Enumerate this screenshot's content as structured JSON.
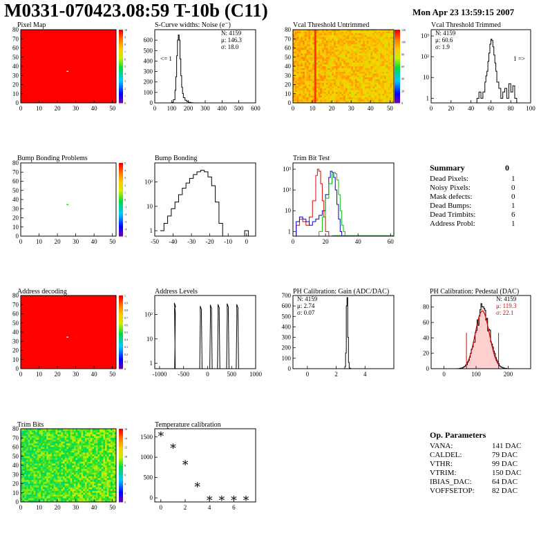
{
  "header": {
    "title": "M0331-070423.08:59 T-10b (C11)",
    "date": "Mon Apr 23 13:59:15 2007"
  },
  "colors": {
    "red_map": "#ff0000",
    "trimbit_red": "#e00000",
    "trimbit_blue": "#0000d0",
    "trimbit_green": "#00c000",
    "pedestal_fit": "#e00000"
  },
  "chart_data": [
    {
      "id": "pixel-map",
      "type": "heatmap",
      "title": "Pixel Map",
      "xlim": [
        0,
        52
      ],
      "ylim": [
        0,
        80
      ],
      "xticks": [
        "0",
        "10",
        "20",
        "30",
        "40",
        "50"
      ],
      "yticks": [
        "0",
        "10",
        "20",
        "30",
        "40",
        "50",
        "60",
        "70",
        "80"
      ],
      "zticks": [
        "0",
        "1",
        "2",
        "3",
        "4",
        "5",
        "6",
        "7",
        "8",
        "9",
        "10"
      ],
      "fill": "uniform_max",
      "dead_pixels": [
        {
          "col": 25,
          "row": 34
        }
      ]
    },
    {
      "id": "s-curve",
      "type": "histogram",
      "title": "S-Curve widths: Noise (e⁻)",
      "xlim": [
        0,
        600
      ],
      "ylim": [
        0,
        700
      ],
      "xticks": [
        "0",
        "100",
        "200",
        "300",
        "400",
        "500",
        "600"
      ],
      "yticks": [
        "0",
        "100",
        "200",
        "300",
        "400",
        "500",
        "600"
      ],
      "stats": [
        "N: 4159",
        "μ: 146.3",
        "σ: 18.0"
      ],
      "annotations": [
        "<= 1"
      ],
      "bins_x": [
        90,
        100,
        110,
        120,
        125,
        130,
        135,
        140,
        145,
        150,
        155,
        160,
        165,
        170,
        180,
        190,
        200,
        215,
        230,
        250
      ],
      "bins_y": [
        0,
        5,
        30,
        120,
        250,
        450,
        600,
        650,
        600,
        420,
        260,
        150,
        90,
        50,
        25,
        12,
        5,
        2,
        0,
        0
      ]
    },
    {
      "id": "vcal-untrimmed",
      "type": "heatmap",
      "title": "Vcal Threshold Untrimmed",
      "xlim": [
        0,
        52
      ],
      "ylim": [
        0,
        80
      ],
      "xticks": [
        "0",
        "10",
        "20",
        "30",
        "40",
        "50"
      ],
      "yticks": [
        "0",
        "10",
        "20",
        "30",
        "40",
        "50",
        "60",
        "70",
        "80"
      ],
      "zticks": [
        "0",
        "20",
        "40",
        "60",
        "80",
        "100",
        "120"
      ]
    },
    {
      "id": "vcal-trimmed",
      "type": "histogram",
      "title": "Vcal Threshold Trimmed",
      "log_y": true,
      "xlim": [
        0,
        100
      ],
      "ylim": [
        0.6,
        2000
      ],
      "xticks": [
        "0",
        "20",
        "40",
        "60",
        "80",
        "100"
      ],
      "yticks": [
        "1",
        "10",
        "10²",
        "10³"
      ],
      "stats": [
        "N: 4159",
        "μ: 60.6",
        "σ: 1.9"
      ],
      "annotations": [
        "1 =>"
      ],
      "bins_x": [
        44,
        46,
        48,
        50,
        52,
        54,
        55,
        56,
        57,
        58,
        59,
        60,
        61,
        62,
        63,
        64,
        65,
        66,
        68,
        70,
        72,
        74,
        76,
        78,
        80,
        82,
        84,
        86
      ],
      "bins_y": [
        0,
        1,
        2,
        1,
        2,
        6,
        12,
        20,
        60,
        150,
        400,
        700,
        600,
        300,
        120,
        50,
        20,
        6,
        3,
        1,
        2,
        3,
        1,
        5,
        2,
        4,
        1,
        0
      ]
    },
    {
      "id": "bump-problems",
      "type": "heatmap",
      "title": "Bump Bonding Problems",
      "xlim": [
        0,
        52
      ],
      "ylim": [
        0,
        80
      ],
      "xticks": [
        "0",
        "10",
        "20",
        "30",
        "40",
        "50"
      ],
      "yticks": [
        "0",
        "10",
        "20",
        "30",
        "40",
        "50",
        "60",
        "70",
        "80"
      ],
      "zticks": [
        "-5",
        "-4",
        "-3",
        "-2",
        "-1",
        "0",
        "1",
        "2",
        "3",
        "4",
        "5"
      ],
      "fill": "empty",
      "dead_bumps": [
        {
          "col": 25,
          "row": 34
        }
      ]
    },
    {
      "id": "bump-bonding",
      "type": "histogram",
      "title": "Bump Bonding",
      "log_y": true,
      "xlim": [
        -50,
        5
      ],
      "ylim": [
        0.6,
        600
      ],
      "xticks": [
        "-50",
        "-40",
        "-30",
        "-20",
        "-10",
        "0"
      ],
      "yticks": [
        "1",
        "10",
        "10²"
      ],
      "bins_x": [
        -47,
        -45,
        -43,
        -41,
        -39,
        -37,
        -35,
        -33,
        -31,
        -29,
        -27,
        -25,
        -23,
        -21,
        -19,
        -17,
        -15,
        -13,
        -11,
        -9,
        -7,
        -5,
        -3,
        -1,
        1
      ],
      "bins_y": [
        1,
        2,
        4,
        8,
        15,
        30,
        55,
        90,
        140,
        200,
        260,
        300,
        260,
        160,
        70,
        15,
        2,
        0,
        0,
        0,
        0,
        0,
        0,
        1,
        0
      ]
    },
    {
      "id": "trim-bit-test",
      "type": "line",
      "title": "Trim Bit Test",
      "log_y": true,
      "xlim": [
        0,
        62
      ],
      "ylim": [
        0.6,
        2000
      ],
      "xticks": [
        "0",
        "20",
        "40",
        "60"
      ],
      "yticks": [
        "1",
        "10",
        "10²",
        "10³"
      ],
      "series": [
        {
          "color": "#e00000",
          "x": [
            0,
            2,
            4,
            6,
            8,
            10,
            12,
            14,
            15,
            16,
            17,
            18,
            19,
            20,
            22,
            24
          ],
          "y": [
            0,
            2,
            4,
            3,
            2,
            5,
            30,
            500,
            1000,
            800,
            200,
            30,
            5,
            1,
            0,
            0
          ]
        },
        {
          "color": "#0000d0",
          "x": [
            0,
            2,
            4,
            6,
            8,
            10,
            12,
            14,
            16,
            18,
            20,
            22,
            23,
            24,
            25,
            26,
            27,
            28,
            29,
            30
          ],
          "y": [
            0,
            3,
            5,
            4,
            3,
            2,
            3,
            4,
            6,
            10,
            60,
            400,
            800,
            700,
            400,
            100,
            20,
            4,
            1,
            0
          ]
        },
        {
          "color": "#00c000",
          "x": [
            0,
            14,
            16,
            18,
            20,
            22,
            24,
            25,
            26,
            27,
            28,
            29,
            30,
            31,
            32
          ],
          "y": [
            0,
            0,
            1,
            5,
            40,
            200,
            600,
            700,
            600,
            300,
            60,
            10,
            2,
            1,
            0
          ]
        }
      ]
    },
    {
      "id": "address-decoding",
      "type": "heatmap",
      "title": "Address decoding",
      "xlim": [
        0,
        52
      ],
      "ylim": [
        0,
        80
      ],
      "xticks": [
        "0",
        "10",
        "20",
        "30",
        "40",
        "50"
      ],
      "yticks": [
        "0",
        "10",
        "20",
        "30",
        "40",
        "50",
        "60",
        "70",
        "80"
      ],
      "zticks": [
        "0",
        "0.1",
        "0.2",
        "0.3",
        "0.4",
        "0.5",
        "0.6",
        "0.7",
        "0.8",
        "0.9",
        "1"
      ],
      "fill": "uniform_max",
      "bad_pixels": [
        {
          "col": 25,
          "row": 34
        }
      ]
    },
    {
      "id": "address-levels",
      "type": "histogram",
      "title": "Address Levels",
      "log_y": true,
      "xlim": [
        -1100,
        1000
      ],
      "ylim": [
        0.6,
        600
      ],
      "xticks": [
        "-1000",
        "-500",
        "0",
        "500",
        "1000"
      ],
      "yticks": [
        "1",
        "10",
        "10²"
      ],
      "peaks": [
        {
          "x": -680,
          "y": 300,
          "w": 12
        },
        {
          "x": -140,
          "y": 220,
          "w": 50
        },
        {
          "x": 70,
          "y": 250,
          "w": 50
        },
        {
          "x": 230,
          "y": 260,
          "w": 50
        },
        {
          "x": 420,
          "y": 280,
          "w": 50
        },
        {
          "x": 620,
          "y": 260,
          "w": 50
        }
      ]
    },
    {
      "id": "ph-gain",
      "type": "histogram",
      "title": "PH Calibration: Gain (ADC/DAC)",
      "xlim": [
        -1,
        6
      ],
      "ylim": [
        0,
        700
      ],
      "xticks": [
        "0",
        "2",
        "4"
      ],
      "yticks": [
        "0",
        "100",
        "200",
        "300",
        "400",
        "500",
        "600",
        "700"
      ],
      "stats": [
        "N: 4159",
        "μ: 2.74",
        "σ: 0.07"
      ],
      "bins_x": [
        2.5,
        2.6,
        2.65,
        2.7,
        2.75,
        2.8,
        2.85,
        2.9,
        3.0
      ],
      "bins_y": [
        0,
        20,
        150,
        600,
        680,
        300,
        60,
        5,
        0
      ]
    },
    {
      "id": "ph-pedestal",
      "type": "histogram",
      "title": "PH Calibration: Pedestal (DAC)",
      "xlim": [
        -40,
        270
      ],
      "ylim": [
        0,
        95
      ],
      "xticks": [
        "0",
        "100",
        "200"
      ],
      "yticks": [
        "0",
        "20",
        "40",
        "60",
        "80"
      ],
      "stats": [
        "N: 4159",
        "μ: 119.3",
        "σ: 22.1"
      ],
      "stats_colors": [
        "#000000",
        "#e00000",
        "#e00000"
      ],
      "fit_range": [
        70,
        170
      ],
      "mean": 119.3,
      "sigma": 22.1,
      "peak": 75
    },
    {
      "id": "trim-bits",
      "type": "heatmap",
      "title": "Trim Bits",
      "xlim": [
        0,
        52
      ],
      "ylim": [
        0,
        80
      ],
      "xticks": [
        "0",
        "10",
        "20",
        "30",
        "40",
        "50"
      ],
      "yticks": [
        "0",
        "10",
        "20",
        "30",
        "40",
        "50",
        "60",
        "70",
        "80"
      ],
      "zticks": [
        "0",
        "2",
        "4",
        "6",
        "8",
        "10",
        "12",
        "14",
        "16"
      ]
    },
    {
      "id": "temperature",
      "type": "scatter",
      "title": "Temperature calibration",
      "xlim": [
        -0.5,
        7.8
      ],
      "ylim": [
        -100,
        1700
      ],
      "xticks": [
        "0",
        "2",
        "4",
        "6"
      ],
      "yticks": [
        "0",
        "500",
        "1000",
        "1500"
      ],
      "x": [
        0,
        1,
        2,
        3,
        4,
        5,
        6,
        7
      ],
      "y": [
        1580,
        1280,
        880,
        330,
        0,
        0,
        0,
        0
      ]
    }
  ],
  "summary": {
    "title": "Summary",
    "value": "0",
    "rows": [
      {
        "label": "Dead Pixels:",
        "value": "1"
      },
      {
        "label": "Noisy Pixels:",
        "value": "0"
      },
      {
        "label": "Mask defects:",
        "value": "0"
      },
      {
        "label": "Dead Bumps:",
        "value": "1"
      },
      {
        "label": "Dead Trimbits:",
        "value": "6"
      },
      {
        "label": "Address Probl:",
        "value": "1"
      }
    ]
  },
  "op_params": {
    "title": "Op. Parameters",
    "rows": [
      {
        "label": "VANA:",
        "value": "141 DAC"
      },
      {
        "label": "CALDEL:",
        "value": "79 DAC"
      },
      {
        "label": "VTHR:",
        "value": "99 DAC"
      },
      {
        "label": "VTRIM:",
        "value": "150 DAC"
      },
      {
        "label": "IBIAS_DAC:",
        "value": "64 DAC"
      },
      {
        "label": "VOFFSETOP:",
        "value": "82 DAC"
      }
    ]
  }
}
